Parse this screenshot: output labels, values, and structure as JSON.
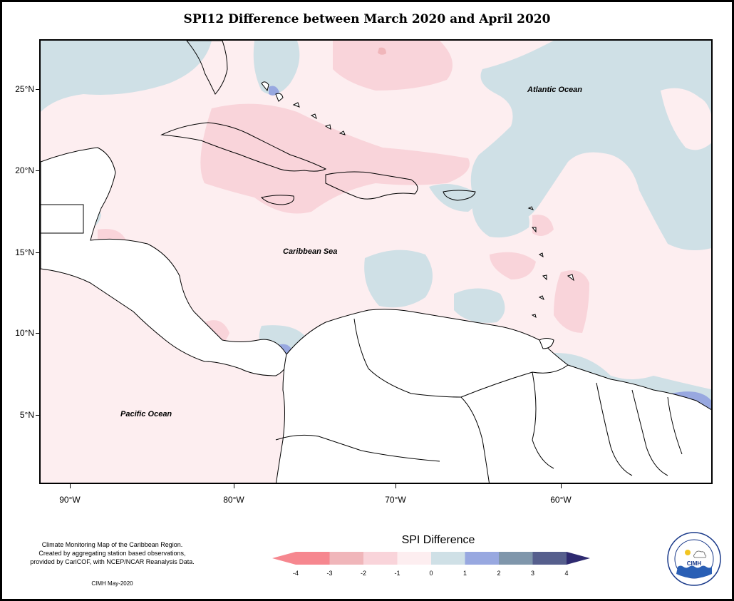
{
  "title": "SPI12 Difference between March 2020 and April 2020",
  "map": {
    "lat_labels": [
      "25°N",
      "20°N",
      "15°N",
      "10°N",
      "5°N"
    ],
    "lon_labels": [
      "90°W",
      "80°W",
      "70°W",
      "60°W"
    ],
    "ocean_labels": {
      "atlantic": "Atlantic Ocean",
      "caribbean": "Caribbean Sea",
      "pacific": "Pacific Ocean"
    }
  },
  "legend": {
    "title": "SPI Difference",
    "ticks": [
      "-4",
      "-3",
      "-2",
      "-1",
      "0",
      "1",
      "2",
      "3",
      "4"
    ],
    "colors": [
      "#f6878f",
      "#f0b6ba",
      "#f9d4da",
      "#fdeef0",
      "#cfe0e6",
      "#98a8e0",
      "#7f96ab",
      "#565f8d"
    ],
    "under_color": "#f6878f",
    "over_color": "#2e2a70"
  },
  "credits": {
    "line1": "Climate Monitoring Map of the Caribbean Region.",
    "line2": "Created by aggregating station based observations,",
    "line3": "provided by CariCOF, with NCEP/NCAR Reanalysis Data.",
    "date": "CIMH May-2020"
  },
  "logo": {
    "text": "CIMH",
    "ring_text": "Caribbean Institute for Meteorology and Hydrology"
  }
}
